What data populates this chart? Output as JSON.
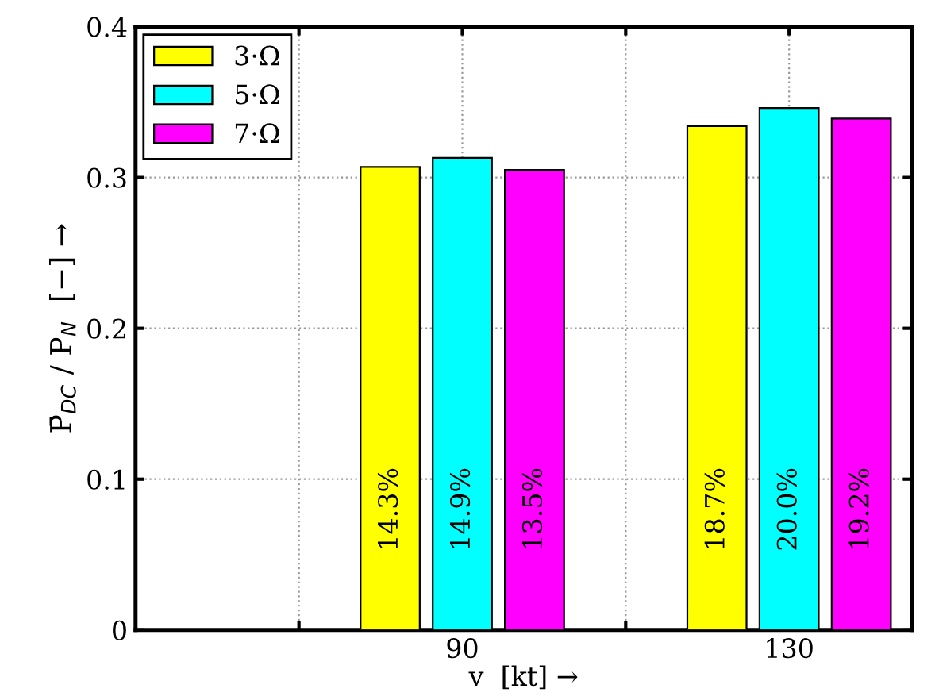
{
  "chart_data": {
    "type": "bar",
    "x": [
      90,
      130
    ],
    "xlim": [
      50,
      145
    ],
    "xticks": [
      {
        "value": 70,
        "label": null
      },
      90,
      {
        "value": 110,
        "label": null
      },
      130
    ],
    "ylim": [
      0,
      0.4
    ],
    "yticks": [
      {
        "value": 0,
        "label": "0"
      },
      0.1,
      0.2,
      0.3,
      0.4
    ],
    "xlabel": "v  [kt] →",
    "ylabel": "P̄$_{DC}$ / P$_{N}$  [−] →",
    "grid": true,
    "legend": "top left",
    "series": [
      {
        "name": "3·Ω",
        "color": "#ffff00",
        "values": [
          0.307,
          0.334
        ]
      },
      {
        "name": "5·Ω",
        "color": "#00ffff",
        "values": [
          0.313,
          0.346
        ]
      },
      {
        "name": "7·Ω",
        "color": "#ff00ff",
        "values": [
          0.305,
          0.339
        ]
      }
    ],
    "annotations": [
      "14.3%",
      "14.9%",
      "13.5%",
      "18.7%",
      "20.0%",
      "19.2%"
    ]
  }
}
